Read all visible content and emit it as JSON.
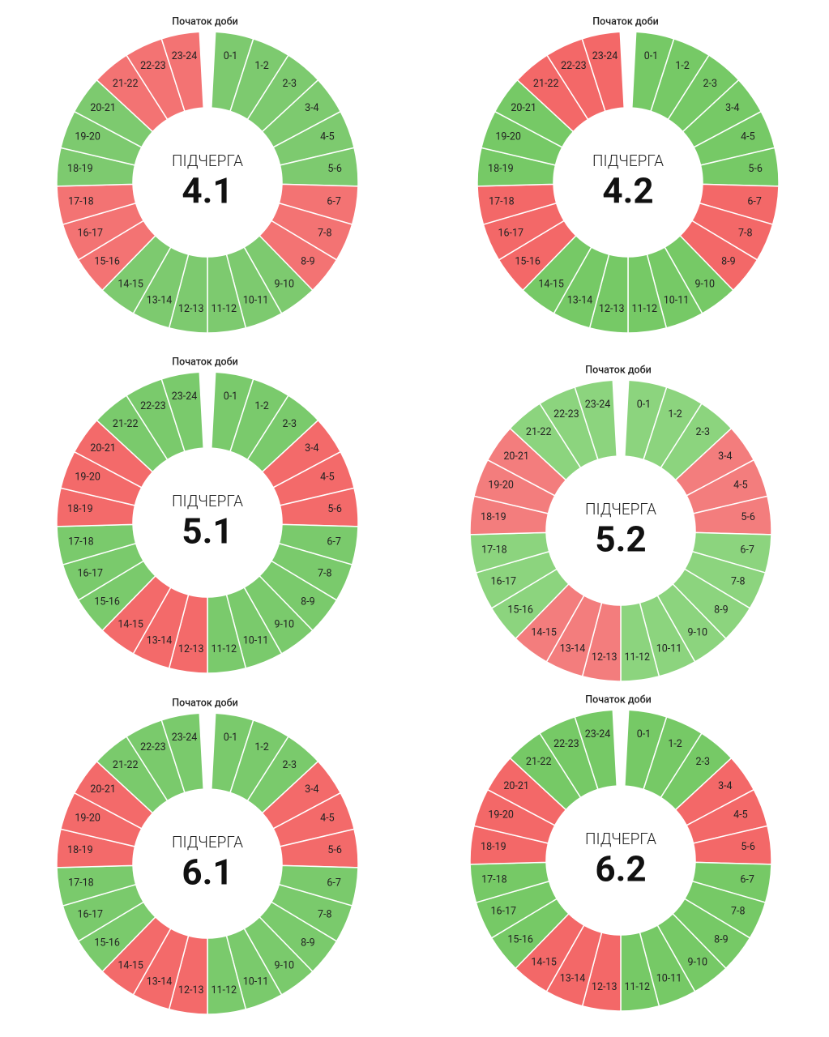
{
  "panels": [
    {
      "caption": "Початок доби",
      "label": "ПІДЧЕРГА",
      "number": "4.1",
      "colors": {
        "on": "#7dca6f",
        "off": "#f37373"
      },
      "hours": [
        {
          "label": "0-1",
          "state": "on"
        },
        {
          "label": "1-2",
          "state": "on"
        },
        {
          "label": "2-3",
          "state": "on"
        },
        {
          "label": "3-4",
          "state": "on"
        },
        {
          "label": "4-5",
          "state": "on"
        },
        {
          "label": "5-6",
          "state": "on"
        },
        {
          "label": "6-7",
          "state": "off"
        },
        {
          "label": "7-8",
          "state": "off"
        },
        {
          "label": "8-9",
          "state": "off"
        },
        {
          "label": "9-10",
          "state": "on"
        },
        {
          "label": "10-11",
          "state": "on"
        },
        {
          "label": "11-12",
          "state": "on"
        },
        {
          "label": "12-13",
          "state": "on"
        },
        {
          "label": "13-14",
          "state": "on"
        },
        {
          "label": "14-15",
          "state": "on"
        },
        {
          "label": "15-16",
          "state": "off"
        },
        {
          "label": "16-17",
          "state": "off"
        },
        {
          "label": "17-18",
          "state": "off"
        },
        {
          "label": "18-19",
          "state": "on"
        },
        {
          "label": "19-20",
          "state": "on"
        },
        {
          "label": "20-21",
          "state": "on"
        },
        {
          "label": "21-22",
          "state": "off"
        },
        {
          "label": "22-23",
          "state": "off"
        },
        {
          "label": "23-24",
          "state": "off"
        }
      ]
    },
    {
      "caption": "Початок доби",
      "label": "ПІДЧЕРГА",
      "number": "4.2",
      "colors": {
        "on": "#76c966",
        "off": "#f36868"
      },
      "hours": [
        {
          "label": "0-1",
          "state": "on"
        },
        {
          "label": "1-2",
          "state": "on"
        },
        {
          "label": "2-3",
          "state": "on"
        },
        {
          "label": "3-4",
          "state": "on"
        },
        {
          "label": "4-5",
          "state": "on"
        },
        {
          "label": "5-6",
          "state": "on"
        },
        {
          "label": "6-7",
          "state": "off"
        },
        {
          "label": "7-8",
          "state": "off"
        },
        {
          "label": "8-9",
          "state": "off"
        },
        {
          "label": "9-10",
          "state": "on"
        },
        {
          "label": "10-11",
          "state": "on"
        },
        {
          "label": "11-12",
          "state": "on"
        },
        {
          "label": "12-13",
          "state": "on"
        },
        {
          "label": "13-14",
          "state": "on"
        },
        {
          "label": "14-15",
          "state": "on"
        },
        {
          "label": "15-16",
          "state": "off"
        },
        {
          "label": "16-17",
          "state": "off"
        },
        {
          "label": "17-18",
          "state": "off"
        },
        {
          "label": "18-19",
          "state": "on"
        },
        {
          "label": "19-20",
          "state": "on"
        },
        {
          "label": "20-21",
          "state": "on"
        },
        {
          "label": "21-22",
          "state": "off"
        },
        {
          "label": "22-23",
          "state": "off"
        },
        {
          "label": "23-24",
          "state": "off"
        }
      ]
    },
    {
      "caption": "Початок доби",
      "label": "ПІДЧЕРГА",
      "number": "5.1",
      "colors": {
        "on": "#7aca6c",
        "off": "#f36a6a"
      },
      "hours": [
        {
          "label": "0-1",
          "state": "on"
        },
        {
          "label": "1-2",
          "state": "on"
        },
        {
          "label": "2-3",
          "state": "on"
        },
        {
          "label": "3-4",
          "state": "off"
        },
        {
          "label": "4-5",
          "state": "off"
        },
        {
          "label": "5-6",
          "state": "off"
        },
        {
          "label": "6-7",
          "state": "on"
        },
        {
          "label": "7-8",
          "state": "on"
        },
        {
          "label": "8-9",
          "state": "on"
        },
        {
          "label": "9-10",
          "state": "on"
        },
        {
          "label": "10-11",
          "state": "on"
        },
        {
          "label": "11-12",
          "state": "on"
        },
        {
          "label": "12-13",
          "state": "off"
        },
        {
          "label": "13-14",
          "state": "off"
        },
        {
          "label": "14-15",
          "state": "off"
        },
        {
          "label": "15-16",
          "state": "on"
        },
        {
          "label": "16-17",
          "state": "on"
        },
        {
          "label": "17-18",
          "state": "on"
        },
        {
          "label": "18-19",
          "state": "off"
        },
        {
          "label": "19-20",
          "state": "off"
        },
        {
          "label": "20-21",
          "state": "off"
        },
        {
          "label": "21-22",
          "state": "on"
        },
        {
          "label": "22-23",
          "state": "on"
        },
        {
          "label": "23-24",
          "state": "on"
        }
      ]
    },
    {
      "caption": "Початок доби",
      "label": "ПІДЧЕРГА",
      "number": "5.2",
      "colors": {
        "on": "#8cd47e",
        "off": "#f37d7d"
      },
      "hours": [
        {
          "label": "0-1",
          "state": "on"
        },
        {
          "label": "1-2",
          "state": "on"
        },
        {
          "label": "2-3",
          "state": "on"
        },
        {
          "label": "3-4",
          "state": "off"
        },
        {
          "label": "4-5",
          "state": "off"
        },
        {
          "label": "5-6",
          "state": "off"
        },
        {
          "label": "6-7",
          "state": "on"
        },
        {
          "label": "7-8",
          "state": "on"
        },
        {
          "label": "8-9",
          "state": "on"
        },
        {
          "label": "9-10",
          "state": "on"
        },
        {
          "label": "10-11",
          "state": "on"
        },
        {
          "label": "11-12",
          "state": "on"
        },
        {
          "label": "12-13",
          "state": "off"
        },
        {
          "label": "13-14",
          "state": "off"
        },
        {
          "label": "14-15",
          "state": "off"
        },
        {
          "label": "15-16",
          "state": "on"
        },
        {
          "label": "16-17",
          "state": "on"
        },
        {
          "label": "17-18",
          "state": "on"
        },
        {
          "label": "18-19",
          "state": "off"
        },
        {
          "label": "19-20",
          "state": "off"
        },
        {
          "label": "20-21",
          "state": "off"
        },
        {
          "label": "21-22",
          "state": "on"
        },
        {
          "label": "22-23",
          "state": "on"
        },
        {
          "label": "23-24",
          "state": "on"
        }
      ]
    },
    {
      "caption": "Початок доби",
      "label": "ПІДЧЕРГА",
      "number": "6.1",
      "colors": {
        "on": "#7aca6c",
        "off": "#f36a6a"
      },
      "hours": [
        {
          "label": "0-1",
          "state": "on"
        },
        {
          "label": "1-2",
          "state": "on"
        },
        {
          "label": "2-3",
          "state": "on"
        },
        {
          "label": "3-4",
          "state": "off"
        },
        {
          "label": "4-5",
          "state": "off"
        },
        {
          "label": "5-6",
          "state": "off"
        },
        {
          "label": "6-7",
          "state": "on"
        },
        {
          "label": "7-8",
          "state": "on"
        },
        {
          "label": "8-9",
          "state": "on"
        },
        {
          "label": "9-10",
          "state": "on"
        },
        {
          "label": "10-11",
          "state": "on"
        },
        {
          "label": "11-12",
          "state": "on"
        },
        {
          "label": "12-13",
          "state": "off"
        },
        {
          "label": "13-14",
          "state": "off"
        },
        {
          "label": "14-15",
          "state": "off"
        },
        {
          "label": "15-16",
          "state": "on"
        },
        {
          "label": "16-17",
          "state": "on"
        },
        {
          "label": "17-18",
          "state": "on"
        },
        {
          "label": "18-19",
          "state": "off"
        },
        {
          "label": "19-20",
          "state": "off"
        },
        {
          "label": "20-21",
          "state": "off"
        },
        {
          "label": "21-22",
          "state": "on"
        },
        {
          "label": "22-23",
          "state": "on"
        },
        {
          "label": "23-24",
          "state": "on"
        }
      ]
    },
    {
      "caption": "Початок доби",
      "label": "ПІДЧЕРГА",
      "number": "6.2",
      "colors": {
        "on": "#76c966",
        "off": "#f36868"
      },
      "hours": [
        {
          "label": "0-1",
          "state": "on"
        },
        {
          "label": "1-2",
          "state": "on"
        },
        {
          "label": "2-3",
          "state": "on"
        },
        {
          "label": "3-4",
          "state": "off"
        },
        {
          "label": "4-5",
          "state": "off"
        },
        {
          "label": "5-6",
          "state": "off"
        },
        {
          "label": "6-7",
          "state": "on"
        },
        {
          "label": "7-8",
          "state": "on"
        },
        {
          "label": "8-9",
          "state": "on"
        },
        {
          "label": "9-10",
          "state": "on"
        },
        {
          "label": "10-11",
          "state": "on"
        },
        {
          "label": "11-12",
          "state": "on"
        },
        {
          "label": "12-13",
          "state": "off"
        },
        {
          "label": "13-14",
          "state": "off"
        },
        {
          "label": "14-15",
          "state": "off"
        },
        {
          "label": "15-16",
          "state": "on"
        },
        {
          "label": "16-17",
          "state": "on"
        },
        {
          "label": "17-18",
          "state": "on"
        },
        {
          "label": "18-19",
          "state": "off"
        },
        {
          "label": "19-20",
          "state": "off"
        },
        {
          "label": "20-21",
          "state": "off"
        },
        {
          "label": "21-22",
          "state": "on"
        },
        {
          "label": "22-23",
          "state": "on"
        },
        {
          "label": "23-24",
          "state": "on"
        }
      ]
    }
  ]
}
